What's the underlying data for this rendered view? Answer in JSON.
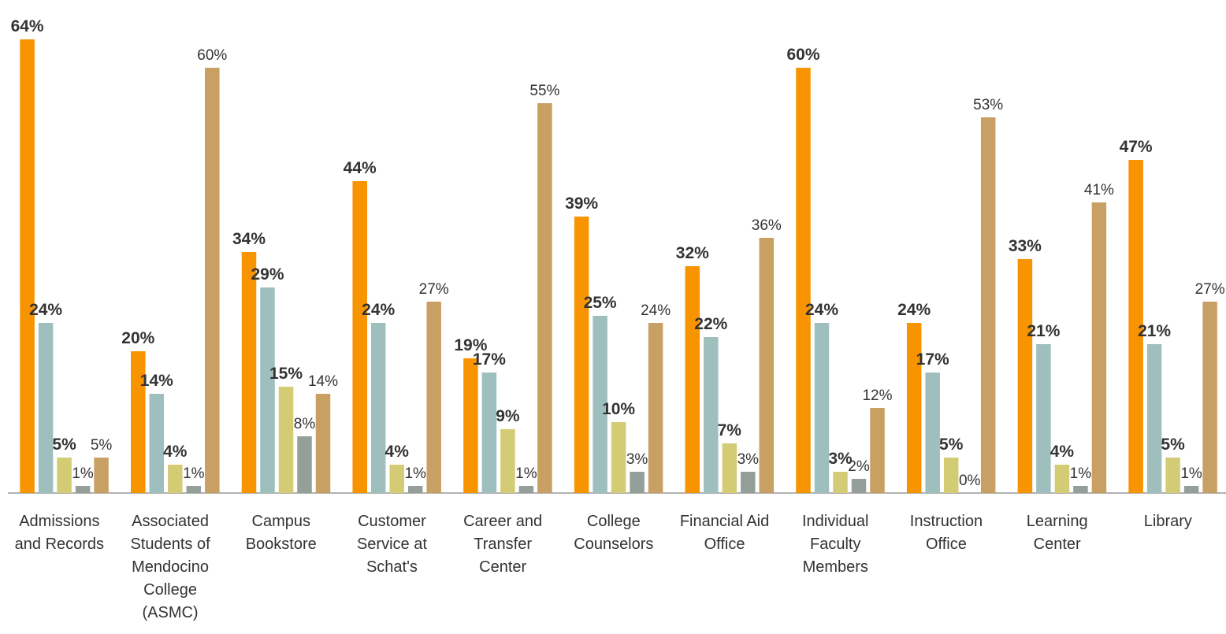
{
  "chart_data": {
    "type": "bar",
    "categories": [
      "Admissions and Records",
      "Associated Students of Mendocino College (ASMC)",
      "Campus Bookstore",
      "Customer Service at Schat's",
      "Career and Transfer Center",
      "College Counselors",
      "Financial Aid Office",
      "Individual Faculty Members",
      "Instruction Office",
      "Learning Center",
      "Library"
    ],
    "series": [
      {
        "color": "#f79400",
        "bold": true,
        "values": [
          64,
          20,
          34,
          44,
          19,
          39,
          32,
          60,
          24,
          33,
          47
        ],
        "value_labels": [
          "64%",
          "20%",
          "34%",
          "44%",
          "19%",
          "39%",
          "32%",
          "60%",
          "24%",
          "33%",
          "47%"
        ]
      },
      {
        "color": "#9fbfbf",
        "bold": true,
        "values": [
          24,
          14,
          29,
          24,
          17,
          25,
          22,
          24,
          17,
          21,
          21
        ],
        "value_labels": [
          "24%",
          "14%",
          "29%",
          "24%",
          "17%",
          "25%",
          "22%",
          "24%",
          "17%",
          "21%",
          "21%"
        ]
      },
      {
        "color": "#d4cc74",
        "bold": true,
        "values": [
          5,
          4,
          15,
          4,
          9,
          10,
          7,
          3,
          5,
          4,
          5
        ],
        "value_labels": [
          "5%",
          "4%",
          "15%",
          "4%",
          "9%",
          "10%",
          "7%",
          "3%",
          "5%",
          "4%",
          "5%"
        ]
      },
      {
        "color": "#959f9a",
        "bold": false,
        "values": [
          1,
          1,
          8,
          1,
          1,
          3,
          3,
          2,
          0,
          1,
          1
        ],
        "value_labels": [
          "1%",
          "1%",
          "8%",
          "1%",
          "1%",
          "3%",
          "3%",
          "2%",
          "0%",
          "1%",
          "1%"
        ]
      },
      {
        "color": "#c9a063",
        "bold": false,
        "values": [
          5,
          60,
          14,
          27,
          55,
          24,
          36,
          12,
          53,
          41,
          27
        ],
        "value_labels": [
          "5%",
          "60%",
          "14%",
          "27%",
          "55%",
          "24%",
          "36%",
          "12%",
          "53%",
          "41%",
          "27%"
        ]
      }
    ]
  }
}
